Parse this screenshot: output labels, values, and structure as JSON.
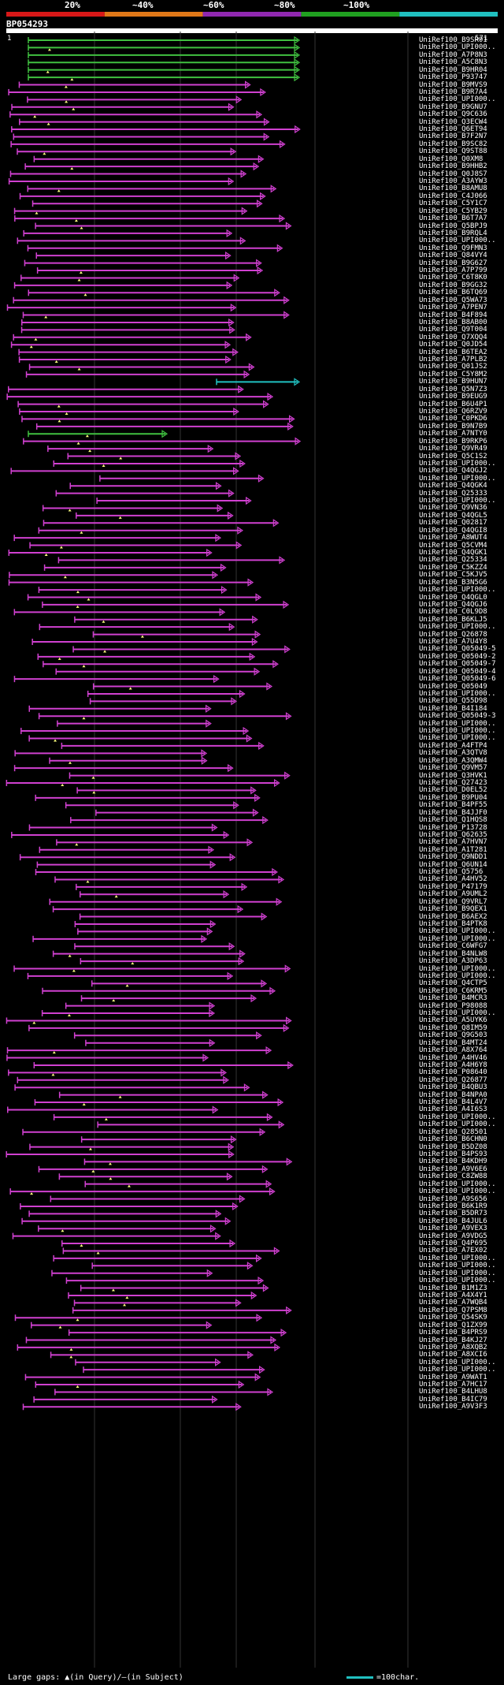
{
  "query": {
    "id": "BP054293",
    "start": "1",
    "end": "571"
  },
  "percent_labels": [
    "20%",
    "~40%",
    "~60%",
    "~80%",
    "~100%"
  ],
  "identity_colors": [
    "#d81818",
    "#e07818",
    "#9028b0",
    "#20a020",
    "#20c0c0"
  ],
  "hits": [
    "UniRef100_B9SR01",
    "UniRef100_UPI000..",
    "UniRef100_A7P8N3",
    "UniRef100_A5C8N3",
    "UniRef100_B9HR04",
    "UniRef100_P93747",
    "UniRef100_B9MVS9",
    "UniRef100_B9R7A4",
    "UniRef100_UPI000..",
    "UniRef100_B9GNU7",
    "UniRef100_Q9C636",
    "UniRef100_Q3ECW4",
    "UniRef100_Q6ET94",
    "UniRef100_B7F2N7",
    "UniRef100_B9SC82",
    "UniRef100_Q9ST88",
    "UniRef100_Q0XM8",
    "UniRef100_B9HHB2",
    "UniRef100_Q0J8S7",
    "UniRef100_A3AYW3",
    "UniRef100_B8AMU8",
    "UniRef100_C4J066",
    "UniRef100_C5Y1C7",
    "UniRef100_C5YB29",
    "UniRef100_B6T7A7",
    "UniRef100_Q5BPJ9",
    "UniRef100_B9RQL4",
    "UniRef100_UPI000..",
    "UniRef100_Q9FMN3",
    "UniRef100_Q84VY4",
    "UniRef100_B9G627",
    "UniRef100_A7P799",
    "UniRef100_C6T8K0",
    "UniRef100_B9GG32",
    "UniRef100_B6TQ69",
    "UniRef100_Q5WA73",
    "UniRef100_A7PEN7",
    "UniRef100_B4F894",
    "UniRef100_B8AB00",
    "UniRef100_Q9T004",
    "UniRef100_Q7XQQ4",
    "UniRef100_Q0JD54",
    "UniRef100_B6TEA2",
    "UniRef100_A7PLB2",
    "UniRef100_Q01JS2",
    "UniRef100_C5Y8M2",
    "UniRef100_B9HUN7",
    "UniRef100_Q5N7Z3",
    "UniRef100_B9EUG9",
    "UniRef100_B6U4P1",
    "UniRef100_Q6RZV9",
    "UniRef100_C0PKD6",
    "UniRef100_B9N7B9",
    "UniRef100_A7NTY0",
    "UniRef100_B9RKP6",
    "UniRef100_Q9VR49",
    "UniRef100_Q5C1S2",
    "UniRef100_UPI000..",
    "UniRef100_Q4QGJ2",
    "UniRef100_UPI000..",
    "UniRef100_Q4QGK4",
    "UniRef100_Q25333",
    "UniRef100_UPI000..",
    "UniRef100_Q9VN36",
    "UniRef100_Q4QGL5",
    "UniRef100_Q02817",
    "UniRef100_Q4QGI8",
    "UniRef100_A8WUT4",
    "UniRef100_Q5CVM4",
    "UniRef100_Q4QGK1",
    "UniRef100_Q25334",
    "UniRef100_C5KZZ4",
    "UniRef100_C5KJV5",
    "UniRef100_B3N5G6",
    "UniRef100_UPI000..",
    "UniRef100_Q4QGL0",
    "UniRef100_Q4QGJ6",
    "UniRef100_C0L9D8",
    "UniRef100_B6KLJ5",
    "UniRef100_UPI000..",
    "UniRef100_Q26878",
    "UniRef100_A7U4Y8",
    "UniRef100_Q05049-5",
    "UniRef100_Q05049-2",
    "UniRef100_Q05049-7",
    "UniRef100_Q05049-4",
    "UniRef100_Q05049-6",
    "UniRef100_Q05049",
    "UniRef100_UPI000..",
    "UniRef100_Q55D98",
    "UniRef100_B4I184",
    "UniRef100_Q05049-3",
    "UniRef100_UPI000..",
    "UniRef100_UPI000..",
    "UniRef100_UPI000..",
    "UniRef100_A4FTP4",
    "UniRef100_A3QTV8",
    "UniRef100_A3QMW4",
    "UniRef100_Q9VM57",
    "UniRef100_Q3HVK1",
    "UniRef100_Q27423",
    "UniRef100_D0EL52",
    "UniRef100_B9PU04",
    "UniRef100_B4PF55",
    "UniRef100_B4JJF0",
    "UniRef100_Q1HQS8",
    "UniRef100_P13728",
    "UniRef100_Q62635",
    "UniRef100_A7HVN7",
    "UniRef100_A1T281",
    "UniRef100_Q9NDD1",
    "UniRef100_Q6UN14",
    "UniRef100_Q5756",
    "UniRef100_A4HV52",
    "UniRef100_P47179",
    "UniRef100_A9UML2",
    "UniRef100_Q9VRL7",
    "UniRef100_B9QEX1",
    "UniRef100_B6AEX2",
    "UniRef100_B4PTK8",
    "UniRef100_UPI000..",
    "UniRef100_UPI000..",
    "UniRef100_C6WFG7",
    "UniRef100_B4NLW8",
    "UniRef100_A3DP63",
    "UniRef100_UPI000..",
    "UniRef100_UPI000..",
    "UniRef100_Q4CTP5",
    "UniRef100_C6KRM5",
    "UniRef100_B4MCR3",
    "UniRef100_P98088",
    "UniRef100_UPI000..",
    "UniRef100_A5UYK6",
    "UniRef100_Q8IM59",
    "UniRef100_Q9G503",
    "UniRef100_B4MT24",
    "UniRef100_A8X764",
    "UniRef100_A4HV46",
    "UniRef100_A4H6Y8",
    "UniRef100_P08640",
    "UniRef100_Q26877",
    "UniRef100_B4QBU3",
    "UniRef100_B4NPA0",
    "UniRef100_B4L4V7",
    "UniRef100_A4I6S3",
    "UniRef100_UPI000..",
    "UniRef100_UPI000..",
    "UniRef100_Q28501",
    "UniRef100_B6CHN0",
    "UniRef100_B5DZ08",
    "UniRef100_B4PS93",
    "UniRef100_B4KDH9",
    "UniRef100_A9V6E6",
    "UniRef100_C8ZW88",
    "UniRef100_UPI000..",
    "UniRef100_UPI000..",
    "UniRef100_A9S656",
    "UniRef100_B6K1R9",
    "UniRef100_B5DR73",
    "UniRef100_B4JUL6",
    "UniRef100_A9VEX3",
    "UniRef100_A9VDG5",
    "UniRef100_Q4P695",
    "UniRef100_A7EX02",
    "UniRef100_UPI000..",
    "UniRef100_UPI000..",
    "UniRef100_UPI000..",
    "UniRef100_UPI000..",
    "UniRef100_B1M1Z3",
    "UniRef100_A4X4Y1",
    "UniRef100_A7WQB4",
    "UniRef100_Q7PSM8",
    "UniRef100_Q54SK9",
    "UniRef100_Q1ZX99",
    "UniRef100_B4PRS9",
    "UniRef100_B4KJ27",
    "UniRef100_A8XQB2",
    "UniRef100_A8XCI6",
    "UniRef100_UPI000..",
    "UniRef100_UPI000..",
    "UniRef100_A9WAT1",
    "UniRef100_A7HC17",
    "UniRef100_B4LHU8",
    "UniRef100_B4IC79",
    "UniRef100_A9V3F3"
  ],
  "footer": {
    "gaps_legend": "Large gaps: ▲(in Query)/—(in Subject)",
    "scale_legend": "=100char."
  }
}
